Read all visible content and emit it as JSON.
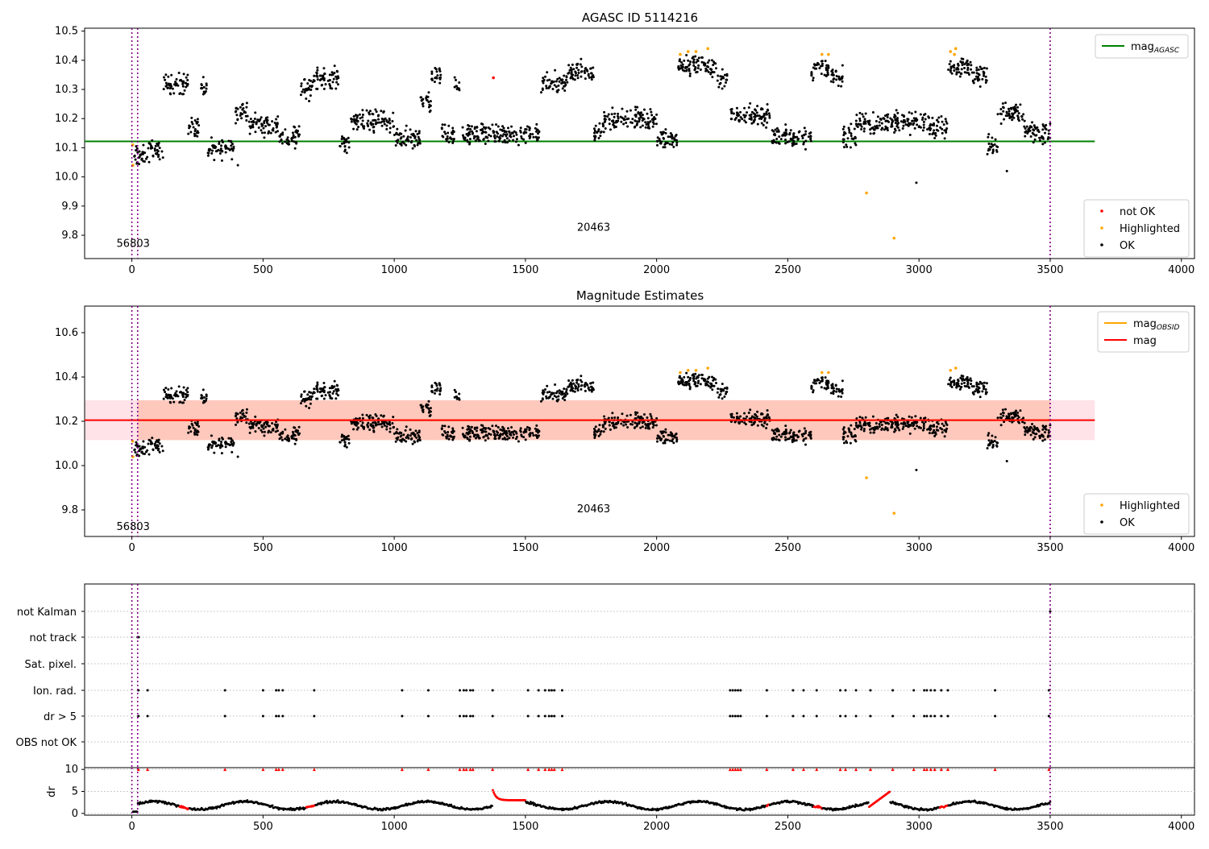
{
  "chart_data": [
    {
      "type": "scatter",
      "title": "AGASC ID 5114216",
      "xlabel": "",
      "ylabel": "",
      "xlim": [
        -180,
        4050
      ],
      "ylim": [
        9.72,
        10.51
      ],
      "xticks": [
        0,
        500,
        1000,
        1500,
        2000,
        2500,
        3000,
        3500,
        4000
      ],
      "yticks": [
        9.8,
        9.9,
        10.0,
        10.1,
        10.2,
        10.3,
        10.4,
        10.5
      ],
      "ytick_labels": [
        "9.8",
        "9.9",
        "10.0",
        "10.1",
        "10.2",
        "10.3",
        "10.4",
        "10.5"
      ],
      "xtick_labels": [
        "0",
        "500",
        "1000",
        "1500",
        "2000",
        "2500",
        "3000",
        "3500",
        "4000"
      ],
      "vlines": [
        0,
        22,
        3500
      ],
      "annotations": [
        {
          "text": "56803",
          "x": 5,
          "y": 9.76
        },
        {
          "text": "20463",
          "x": 1760,
          "y": 9.815
        }
      ],
      "hline": {
        "name": "mag_AGASC",
        "y": 10.122,
        "x_range": [
          -180,
          3670
        ],
        "color": "#008000"
      },
      "series": [
        {
          "name": "not OK",
          "color": "#ff0000",
          "points": [
            [
              1378,
              10.34
            ]
          ]
        },
        {
          "name": "Highlighted",
          "color": "#ffa500",
          "points": [
            [
              3,
              10.11
            ],
            [
              4,
              10.04
            ],
            [
              2090,
              10.42
            ],
            [
              2120,
              10.43
            ],
            [
              2150,
              10.43
            ],
            [
              2195,
              10.44
            ],
            [
              2630,
              10.42
            ],
            [
              2655,
              10.42
            ],
            [
              2800,
              9.945
            ],
            [
              2905,
              9.79
            ],
            [
              3120,
              10.43
            ],
            [
              3140,
              10.44
            ],
            [
              3135,
              10.42
            ]
          ]
        },
        {
          "name": "OK",
          "color": "#000000",
          "points": []
        }
      ],
      "legend": [
        "mag_AGASC",
        "not OK",
        "Highlighted",
        "OK"
      ],
      "legend_position": "top-right / bottom-right",
      "isolated_ok_points": [
        [
          404,
          10.04
        ],
        [
          2990,
          9.98
        ],
        [
          3335,
          10.02
        ]
      ]
    },
    {
      "type": "scatter",
      "title": "Magnitude Estimates",
      "xlabel": "",
      "ylabel": "",
      "xlim": [
        -180,
        4050
      ],
      "ylim": [
        9.68,
        10.72
      ],
      "xticks": [
        0,
        500,
        1000,
        1500,
        2000,
        2500,
        3000,
        3500,
        4000
      ],
      "yticks": [
        9.8,
        10.0,
        10.2,
        10.4,
        10.6
      ],
      "ytick_labels": [
        "9.8",
        "10.0",
        "10.2",
        "10.4",
        "10.6"
      ],
      "xtick_labels": [
        "0",
        "500",
        "1000",
        "1500",
        "2000",
        "2500",
        "3000",
        "3500",
        "4000"
      ],
      "vlines": [
        0,
        22,
        3500
      ],
      "annotations": [
        {
          "text": "56803",
          "x": 5,
          "y": 9.71
        },
        {
          "text": "20463",
          "x": 1760,
          "y": 9.79
        }
      ],
      "mag_line": {
        "name": "mag",
        "y": 10.205,
        "band": [
          10.115,
          10.295
        ],
        "x_range": [
          -180,
          3670
        ],
        "color": "#ff0000",
        "band_color": "#ffc0cb"
      },
      "obsid_band": {
        "name": "mag_OBSID",
        "y": 10.205,
        "band": [
          10.115,
          10.295
        ],
        "x_range": [
          22,
          3500
        ],
        "color": "#ffa500"
      },
      "series": [
        {
          "name": "Highlighted",
          "color": "#ffa500",
          "points": [
            [
              3,
              10.11
            ],
            [
              4,
              10.04
            ],
            [
              2090,
              10.42
            ],
            [
              2120,
              10.43
            ],
            [
              2150,
              10.43
            ],
            [
              2195,
              10.44
            ],
            [
              2630,
              10.42
            ],
            [
              2655,
              10.42
            ],
            [
              2800,
              9.945
            ],
            [
              2905,
              9.785
            ],
            [
              3120,
              10.43
            ],
            [
              3140,
              10.44
            ]
          ]
        },
        {
          "name": "OK",
          "color": "#000000",
          "points": []
        }
      ],
      "legend": [
        "mag_OBSID",
        "mag",
        "Highlighted",
        "OK"
      ],
      "legend_position": "top-right / bottom-right",
      "isolated_ok_points": [
        [
          404,
          10.04
        ],
        [
          2990,
          9.98
        ],
        [
          3335,
          10.02
        ]
      ]
    },
    {
      "type": "scatter",
      "title": "",
      "xlim": [
        -180,
        4050
      ],
      "categories": [
        "OBS not OK",
        "dr > 5",
        "Ion. rad.",
        "Sat. pixel.",
        "not track",
        "not Kalman"
      ],
      "vlines": [
        0,
        22,
        3500
      ],
      "flag_points": {
        "not Kalman": [
          3500
        ],
        "not track": [
          22,
          26
        ],
        "Ion. rad.": [
          25,
          60,
          355,
          500,
          550,
          560,
          575,
          695,
          1030,
          1130,
          1250,
          1265,
          1275,
          1290,
          1300,
          1375,
          1510,
          1550,
          1575,
          1590,
          1600,
          1610,
          1640,
          2280,
          2290,
          2300,
          2310,
          2320,
          2420,
          2520,
          2560,
          2610,
          2700,
          2720,
          2760,
          2815,
          2900,
          2980,
          3020,
          3030,
          3045,
          3060,
          3085,
          3110,
          3290,
          3495
        ],
        "dr > 5": [
          25,
          60,
          355,
          500,
          550,
          560,
          575,
          695,
          1030,
          1130,
          1250,
          1265,
          1275,
          1290,
          1300,
          1375,
          1510,
          1550,
          1575,
          1590,
          1600,
          1610,
          1640,
          2280,
          2290,
          2300,
          2310,
          2320,
          2420,
          2520,
          2560,
          2610,
          2700,
          2720,
          2760,
          2815,
          2900,
          2980,
          3020,
          3030,
          3045,
          3060,
          3085,
          3110,
          3290,
          3495
        ]
      }
    },
    {
      "type": "line",
      "title": "",
      "xlabel": "",
      "ylabel": "dr",
      "xlim": [
        -180,
        4050
      ],
      "ylim": [
        -0.4,
        10.4
      ],
      "yticks": [
        0,
        5,
        10
      ],
      "ytick_labels": [
        "0",
        "5",
        "10"
      ],
      "xticks": [
        0,
        500,
        1000,
        1500,
        2000,
        2500,
        3000,
        3500,
        4000
      ],
      "xtick_labels": [
        "0",
        "500",
        "1000",
        "1500",
        "2000",
        "2500",
        "3000",
        "3500",
        "4000"
      ],
      "vlines": [
        0,
        22,
        3500
      ],
      "clipped_at_10": [
        25,
        60,
        355,
        500,
        550,
        560,
        575,
        695,
        1030,
        1130,
        1250,
        1265,
        1275,
        1290,
        1300,
        1375,
        1510,
        1550,
        1575,
        1590,
        1600,
        1610,
        1640,
        2280,
        2290,
        2300,
        2310,
        2320,
        2420,
        2520,
        2560,
        2610,
        2700,
        2720,
        2760,
        2815,
        2900,
        2980,
        3020,
        3030,
        3045,
        3060,
        3085,
        3110,
        3290,
        3495
      ],
      "red_segments": [
        [
          180,
          220
        ],
        [
          665,
          700
        ],
        [
          1375,
          1500
        ],
        [
          2420,
          2430
        ],
        [
          2600,
          2630
        ],
        [
          2810,
          2890
        ],
        [
          3080,
          3110
        ]
      ]
    }
  ],
  "colors": {
    "ok": "#000000",
    "highlighted": "#ffa500",
    "not_ok": "#ff0000",
    "agasc_line": "#008000",
    "vline": "#800080"
  }
}
